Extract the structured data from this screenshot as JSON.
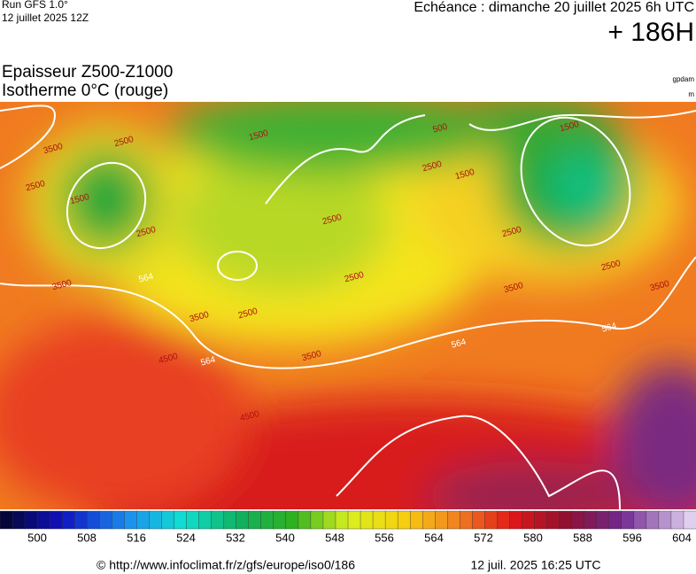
{
  "header": {
    "run": "Run GFS 1.0°",
    "run_date": "12 juillet 2025 12Z",
    "valid": "Echéance : dimanche 20 juillet 2025 6h UTC",
    "lead": "+ 186H",
    "title": "Epaisseur Z500-Z1000",
    "subtitle": "Isotherme 0°C (rouge)",
    "unit1": "gpdam",
    "unit2": "m"
  },
  "map": {
    "labels": [
      "3500",
      "2500",
      "1500",
      "2500",
      "2500",
      "3500",
      "564",
      "3500",
      "564",
      "2500",
      "3500",
      "4500",
      "4500",
      "1500",
      "2500",
      "2500",
      "1500",
      "500",
      "2500",
      "1500",
      "2500",
      "2500",
      "3500",
      "564",
      "564",
      "3500"
    ]
  },
  "colorbar": {
    "ticks": [
      500,
      508,
      516,
      524,
      532,
      540,
      548,
      556,
      564,
      572,
      580,
      588,
      596,
      604
    ]
  },
  "footer": {
    "url": "© http://www.infoclimat.fr/z/gfs/europe/iso0/186",
    "generated": "12 juil. 2025 16:25 UTC"
  }
}
